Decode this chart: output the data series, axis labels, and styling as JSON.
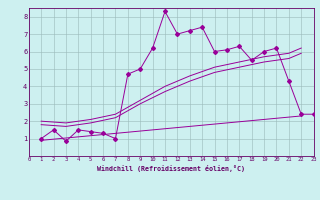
{
  "xlabel": "Windchill (Refroidissement éolien,°C)",
  "background_color": "#cdf0f0",
  "grid_color": "#9ababa",
  "line_color": "#990099",
  "text_color": "#660066",
  "xlim": [
    0,
    23
  ],
  "ylim": [
    0,
    8.5
  ],
  "xticks": [
    0,
    1,
    2,
    3,
    4,
    5,
    6,
    7,
    8,
    9,
    10,
    11,
    12,
    13,
    14,
    15,
    16,
    17,
    18,
    19,
    20,
    21,
    22,
    23
  ],
  "yticks": [
    1,
    2,
    3,
    4,
    5,
    6,
    7,
    8
  ],
  "line1_x": [
    1,
    2,
    3,
    4,
    5,
    6,
    7,
    8,
    9,
    10,
    11,
    12,
    13,
    14,
    15,
    16,
    17,
    18,
    19,
    20,
    21,
    22,
    23
  ],
  "line1_y": [
    1.0,
    1.5,
    0.85,
    1.5,
    1.4,
    1.3,
    1.0,
    4.7,
    5.0,
    6.2,
    8.3,
    7.0,
    7.2,
    7.4,
    6.0,
    6.1,
    6.3,
    5.5,
    6.0,
    6.2,
    4.3,
    2.4,
    2.4
  ],
  "line2_x": [
    1,
    3,
    5,
    7,
    9,
    11,
    13,
    15,
    17,
    19,
    21,
    22
  ],
  "line2_y": [
    2.0,
    1.9,
    2.1,
    2.4,
    3.2,
    4.0,
    4.6,
    5.1,
    5.4,
    5.7,
    5.9,
    6.2
  ],
  "line3_x": [
    1,
    3,
    5,
    7,
    9,
    11,
    13,
    15,
    17,
    19,
    21,
    22
  ],
  "line3_y": [
    1.8,
    1.7,
    1.9,
    2.2,
    3.0,
    3.7,
    4.3,
    4.8,
    5.1,
    5.4,
    5.6,
    5.9
  ],
  "line4_x": [
    1,
    22
  ],
  "line4_y": [
    0.9,
    2.3
  ]
}
